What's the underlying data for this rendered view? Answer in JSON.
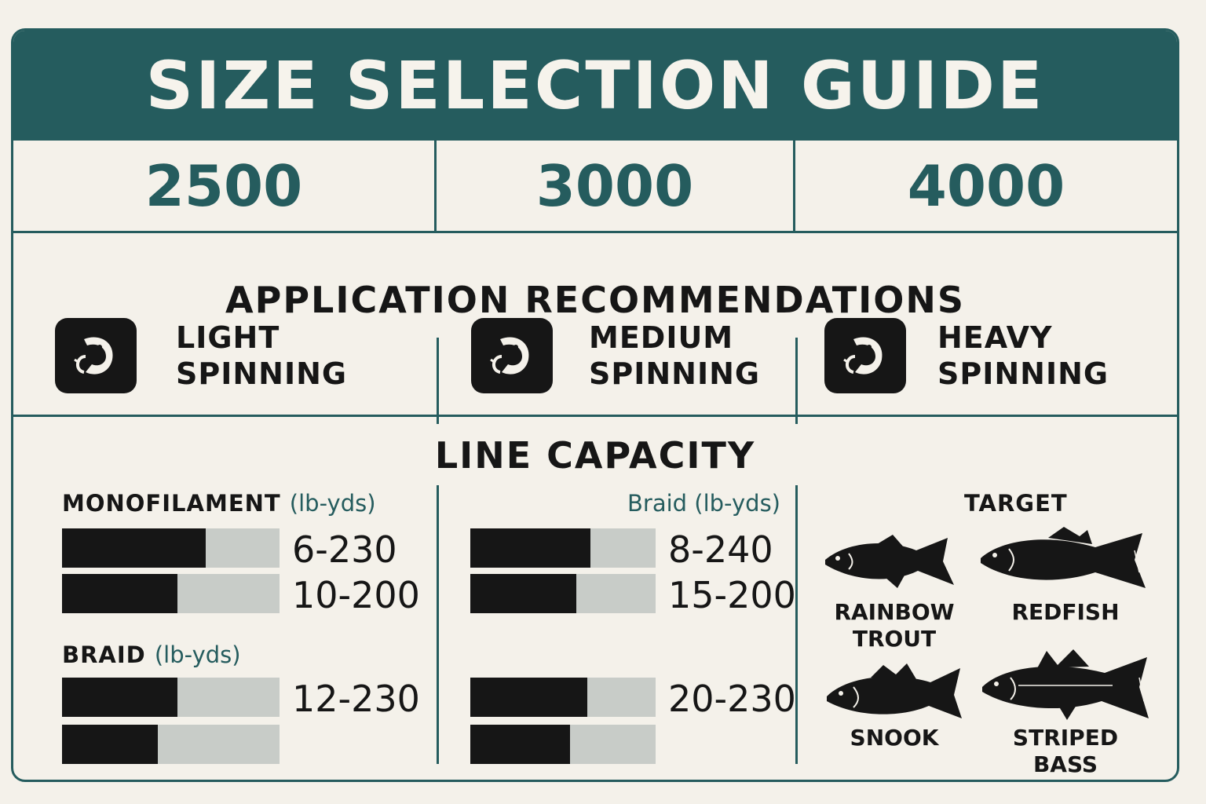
{
  "title": "SIZE SELECTION GUIDE",
  "sizes": [
    "2500",
    "3000",
    "4000"
  ],
  "applications": {
    "title": "APPLICATION RECOMMENDATIONS",
    "items": [
      {
        "line1": "LIGHT",
        "line2": "SPINNING",
        "icon": "fish-hook-icon"
      },
      {
        "line1": "MEDIUM",
        "line2": "SPINNING",
        "icon": "fish-hook-icon"
      },
      {
        "line1": "HEAVY",
        "line2": "SPINNING",
        "icon": "fish-hook-icon"
      }
    ]
  },
  "line_capacity": {
    "title": "LINE CAPACITY",
    "col1": {
      "mono_label": "MONOFILAMENT",
      "mono_unit": "(lb-yds)",
      "braid_label": "BRAID",
      "braid_unit": "(lb-yds)",
      "bars": [
        {
          "value": "6-230",
          "fill": 0.66
        },
        {
          "value": "10-200",
          "fill": 0.53
        },
        {
          "value": "12-230",
          "fill": 0.53
        },
        {
          "value": "",
          "fill": 0.44
        }
      ]
    },
    "col2": {
      "braid_label": "Braid (lb-yds)",
      "bars": [
        {
          "value": "8-240",
          "fill": 0.65
        },
        {
          "value": "15-200",
          "fill": 0.57
        },
        {
          "value": "20-230",
          "fill": 0.63
        },
        {
          "value": "",
          "fill": 0.54
        }
      ]
    },
    "target": {
      "label": "TARGET",
      "fish": [
        {
          "name1": "RAINBOW",
          "name2": "TROUT",
          "icon": "trout-icon"
        },
        {
          "name1": "REDFISH",
          "name2": "",
          "icon": "redfish-icon"
        },
        {
          "name1": "SNOOK",
          "name2": "",
          "icon": "snook-icon"
        },
        {
          "name1": "STRIPED BASS",
          "name2": "",
          "icon": "striped-bass-icon"
        }
      ]
    }
  },
  "colors": {
    "teal": "#255c5e",
    "dark": "#161616",
    "bar_bg": "#c8ccc8",
    "paper": "#f4f1ea"
  }
}
